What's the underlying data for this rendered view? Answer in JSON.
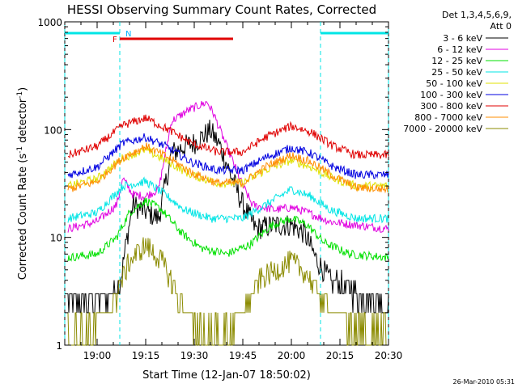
{
  "chart_data": {
    "type": "line",
    "title": "HESSI Observing Summary Count Rates, Corrected",
    "xlabel": "Start Time (12-Jan-07 18:50:02)",
    "ylabel": "Corrected Count Rate (s",
    "ylabel_sup": "-1",
    "ylabel_mid": " detector",
    "ylabel_sup2": "-1",
    "ylabel_end": ")",
    "y_scale": "log",
    "ylim": [
      1,
      1000
    ],
    "xlim": [
      "18:50",
      "20:30"
    ],
    "x_ticks": [
      "19:00",
      "19:15",
      "19:30",
      "19:45",
      "20:00",
      "20:15",
      "20:30"
    ],
    "y_ticks": [
      "1",
      "10",
      "100",
      "1000"
    ],
    "legend_header": [
      "Det 1,3,4,5,6,9,",
      "Att 0"
    ],
    "legend_placement": "right",
    "timestamp": "26-Mar-2010 05:31",
    "flag_labels": {
      "F": "F",
      "N": "N"
    },
    "colors": {
      "night": "#00e5e5",
      "flare_flag": "#e00000",
      "flag_F": "#e00000",
      "flag_N": "#00b4ff"
    },
    "night_intervals": [
      [
        "18:50",
        "19:07"
      ],
      [
        "20:09",
        "20:30"
      ]
    ],
    "flare_flag_interval": [
      "19:07",
      "19:42"
    ],
    "series": [
      {
        "name": "3 - 6 keV",
        "color": "#000000",
        "points": [
          [
            "18:51",
            2.5
          ],
          [
            "19:03",
            2.8
          ],
          [
            "19:07",
            3.5
          ],
          [
            "19:09",
            9
          ],
          [
            "19:11",
            20
          ],
          [
            "19:14",
            18
          ],
          [
            "19:19",
            15
          ],
          [
            "19:23",
            60
          ],
          [
            "19:27",
            70
          ],
          [
            "19:30",
            75
          ],
          [
            "19:35",
            98
          ],
          [
            "19:38",
            70
          ],
          [
            "19:41",
            40
          ],
          [
            "19:45",
            20
          ],
          [
            "19:49",
            12
          ],
          [
            "19:55",
            13
          ],
          [
            "20:00",
            13
          ],
          [
            "20:04",
            11
          ],
          [
            "20:08",
            6
          ],
          [
            "20:12",
            4
          ],
          [
            "20:20",
            3
          ],
          [
            "20:30",
            2.5
          ]
        ]
      },
      {
        "name": "6 - 12 keV",
        "color": "#e000e0",
        "points": [
          [
            "18:51",
            12
          ],
          [
            "19:00",
            14
          ],
          [
            "19:06",
            20
          ],
          [
            "19:08",
            35
          ],
          [
            "19:11",
            25
          ],
          [
            "19:15",
            24
          ],
          [
            "19:19",
            28
          ],
          [
            "19:23",
            120
          ],
          [
            "19:28",
            150
          ],
          [
            "19:34",
            180
          ],
          [
            "19:36",
            140
          ],
          [
            "19:40",
            70
          ],
          [
            "19:45",
            30
          ],
          [
            "19:48",
            20
          ],
          [
            "19:55",
            18
          ],
          [
            "20:00",
            19
          ],
          [
            "20:05",
            17
          ],
          [
            "20:12",
            14
          ],
          [
            "20:20",
            13
          ],
          [
            "20:30",
            12
          ]
        ]
      },
      {
        "name": "12 - 25 keV",
        "color": "#00e000",
        "points": [
          [
            "18:51",
            6.5
          ],
          [
            "19:00",
            7
          ],
          [
            "19:06",
            10
          ],
          [
            "19:10",
            17
          ],
          [
            "19:15",
            22
          ],
          [
            "19:20",
            18
          ],
          [
            "19:26",
            11
          ],
          [
            "19:32",
            8
          ],
          [
            "19:40",
            7
          ],
          [
            "19:47",
            8.5
          ],
          [
            "19:54",
            13
          ],
          [
            "20:00",
            15
          ],
          [
            "20:05",
            13
          ],
          [
            "20:10",
            9
          ],
          [
            "20:18",
            7
          ],
          [
            "20:30",
            6.5
          ]
        ]
      },
      {
        "name": "25 - 50 keV",
        "color": "#00e5e5",
        "points": [
          [
            "18:51",
            15
          ],
          [
            "19:00",
            17
          ],
          [
            "19:08",
            30
          ],
          [
            "19:15",
            33
          ],
          [
            "19:21",
            25
          ],
          [
            "19:27",
            18
          ],
          [
            "19:35",
            15
          ],
          [
            "19:45",
            15
          ],
          [
            "19:52",
            20
          ],
          [
            "20:00",
            28
          ],
          [
            "20:06",
            24
          ],
          [
            "20:12",
            18
          ],
          [
            "20:20",
            15
          ],
          [
            "20:30",
            15
          ]
        ]
      },
      {
        "name": "50 - 100 keV",
        "color": "#e0e000",
        "points": [
          [
            "18:51",
            30
          ],
          [
            "19:00",
            35
          ],
          [
            "19:08",
            55
          ],
          [
            "19:15",
            65
          ],
          [
            "19:22",
            50
          ],
          [
            "19:29",
            38
          ],
          [
            "19:37",
            32
          ],
          [
            "19:45",
            32
          ],
          [
            "19:52",
            42
          ],
          [
            "20:00",
            52
          ],
          [
            "20:06",
            45
          ],
          [
            "20:13",
            35
          ],
          [
            "20:20",
            30
          ],
          [
            "20:30",
            30
          ]
        ]
      },
      {
        "name": "100 - 300 keV",
        "color": "#0000e0",
        "points": [
          [
            "18:51",
            38
          ],
          [
            "19:00",
            45
          ],
          [
            "19:08",
            75
          ],
          [
            "19:15",
            85
          ],
          [
            "19:22",
            68
          ],
          [
            "19:29",
            50
          ],
          [
            "19:37",
            42
          ],
          [
            "19:45",
            42
          ],
          [
            "19:52",
            55
          ],
          [
            "20:00",
            68
          ],
          [
            "20:06",
            60
          ],
          [
            "20:13",
            45
          ],
          [
            "20:20",
            38
          ],
          [
            "20:30",
            38
          ]
        ]
      },
      {
        "name": "300 - 800 keV",
        "color": "#e00000",
        "points": [
          [
            "18:51",
            58
          ],
          [
            "19:00",
            70
          ],
          [
            "19:08",
            110
          ],
          [
            "19:15",
            128
          ],
          [
            "19:22",
            100
          ],
          [
            "19:29",
            75
          ],
          [
            "19:37",
            62
          ],
          [
            "19:45",
            62
          ],
          [
            "19:52",
            85
          ],
          [
            "20:00",
            108
          ],
          [
            "20:06",
            95
          ],
          [
            "20:13",
            70
          ],
          [
            "20:20",
            58
          ],
          [
            "20:30",
            58
          ]
        ]
      },
      {
        "name": "800 - 7000 keV",
        "color": "#ff8c00",
        "points": [
          [
            "18:51",
            28
          ],
          [
            "19:00",
            33
          ],
          [
            "19:08",
            55
          ],
          [
            "19:15",
            70
          ],
          [
            "19:22",
            55
          ],
          [
            "19:29",
            40
          ],
          [
            "19:37",
            32
          ],
          [
            "19:45",
            32
          ],
          [
            "19:52",
            45
          ],
          [
            "20:00",
            58
          ],
          [
            "20:06",
            50
          ],
          [
            "20:13",
            37
          ],
          [
            "20:20",
            29
          ],
          [
            "20:30",
            28
          ]
        ]
      },
      {
        "name": "7000 - 20000 keV",
        "color": "#8b8b00",
        "points": [
          [
            "18:51",
            1.4
          ],
          [
            "19:00",
            1.6
          ],
          [
            "19:05",
            2.5
          ],
          [
            "19:10",
            6
          ],
          [
            "19:15",
            8.5
          ],
          [
            "19:20",
            6
          ],
          [
            "19:25",
            2.8
          ],
          [
            "19:30",
            1.4
          ],
          [
            "19:38",
            1.3
          ],
          [
            "19:45",
            2
          ],
          [
            "19:50",
            4
          ],
          [
            "20:00",
            6
          ],
          [
            "20:05",
            4.5
          ],
          [
            "20:10",
            2.5
          ],
          [
            "20:20",
            1.4
          ],
          [
            "20:30",
            1.3
          ]
        ]
      }
    ]
  }
}
